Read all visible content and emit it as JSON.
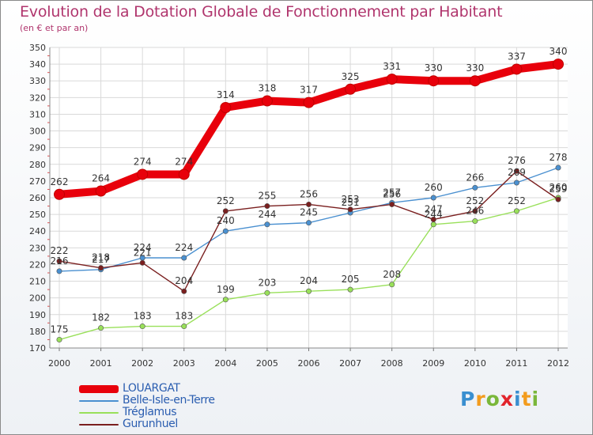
{
  "title": "Evolution de la Dotation Globale de Fonctionnement par Habitant",
  "subtitle": "(en € et par an)",
  "logo": {
    "text": "Proxiti",
    "letter_colors": [
      "#3a8fd0",
      "#f39c1e",
      "#7ab73a",
      "#e2242c",
      "#3a8fd0",
      "#f39c1e",
      "#7ab73a"
    ]
  },
  "chart_data": {
    "type": "line",
    "title": "Evolution de la Dotation Globale de Fonctionnement par Habitant",
    "subtitle": "(en € et par an)",
    "xlabel": "",
    "ylabel": "",
    "ylim": [
      170,
      350
    ],
    "y_ticks": [
      170,
      180,
      190,
      200,
      210,
      220,
      230,
      240,
      250,
      260,
      270,
      280,
      290,
      300,
      310,
      320,
      330,
      340,
      350
    ],
    "x": [
      "2000",
      "2001",
      "2002",
      "2003",
      "2004",
      "2005",
      "2006",
      "2007",
      "2008",
      "2009",
      "2010",
      "2011",
      "2012"
    ],
    "grid": true,
    "legend_position": "bottom-left",
    "series": [
      {
        "name": "LOUARGAT",
        "color": "#e8000b",
        "marker_color": "#e8000b",
        "emphasis": true,
        "values": [
          262,
          264,
          274,
          274,
          314,
          318,
          317,
          325,
          331,
          330,
          330,
          337,
          340
        ]
      },
      {
        "name": "Belle-Isle-en-Terre",
        "color": "#4a90d0",
        "marker_color": "#4a90d0",
        "emphasis": false,
        "values": [
          216,
          217,
          224,
          224,
          240,
          244,
          245,
          251,
          257,
          260,
          266,
          269,
          278
        ]
      },
      {
        "name": "Tréglamus",
        "color": "#99e05a",
        "marker_color": "#99e05a",
        "emphasis": false,
        "values": [
          175,
          182,
          183,
          183,
          199,
          203,
          204,
          205,
          208,
          244,
          246,
          252,
          260
        ]
      },
      {
        "name": "Gurunhuel",
        "color": "#7a1f1f",
        "marker_color": "#7a1f1f",
        "emphasis": false,
        "values": [
          222,
          218,
          221,
          204,
          252,
          255,
          256,
          253,
          256,
          247,
          252,
          276,
          259
        ]
      }
    ]
  }
}
